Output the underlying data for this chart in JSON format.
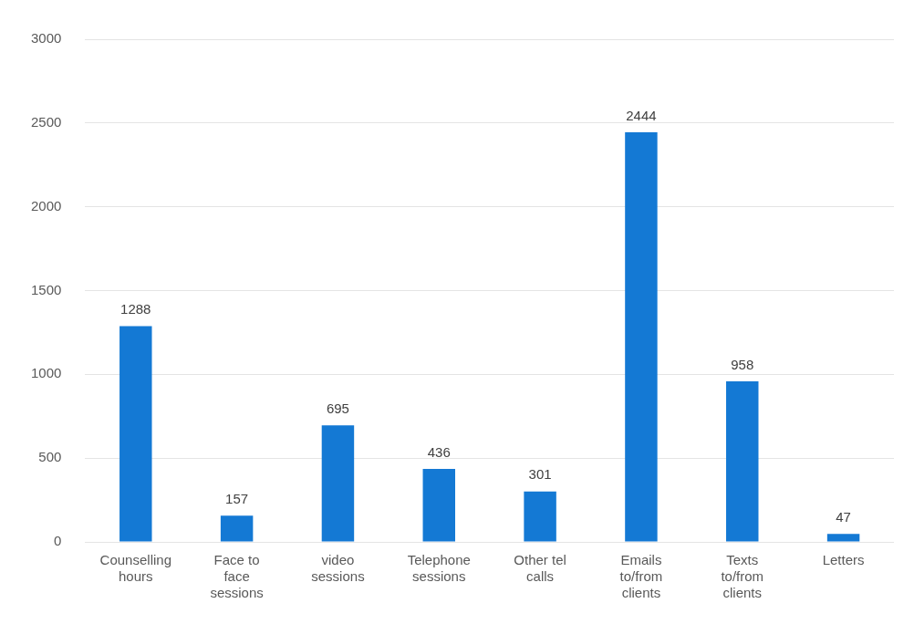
{
  "chart_data": {
    "type": "bar",
    "categories": [
      "Counselling hours",
      "Face to face sessions",
      "video sessions",
      "Telephone sessions",
      "Other tel calls",
      "Emails to/from clients",
      "Texts to/from clients",
      "Letters"
    ],
    "values": [
      1288,
      157,
      695,
      436,
      301,
      2444,
      958,
      47
    ],
    "color": "#1479d4",
    "ylim": [
      0,
      3000
    ],
    "yticks": [
      0,
      500,
      1000,
      1500,
      2000,
      2500,
      3000
    ],
    "grid": "y",
    "legend": false,
    "data_labels": true
  }
}
